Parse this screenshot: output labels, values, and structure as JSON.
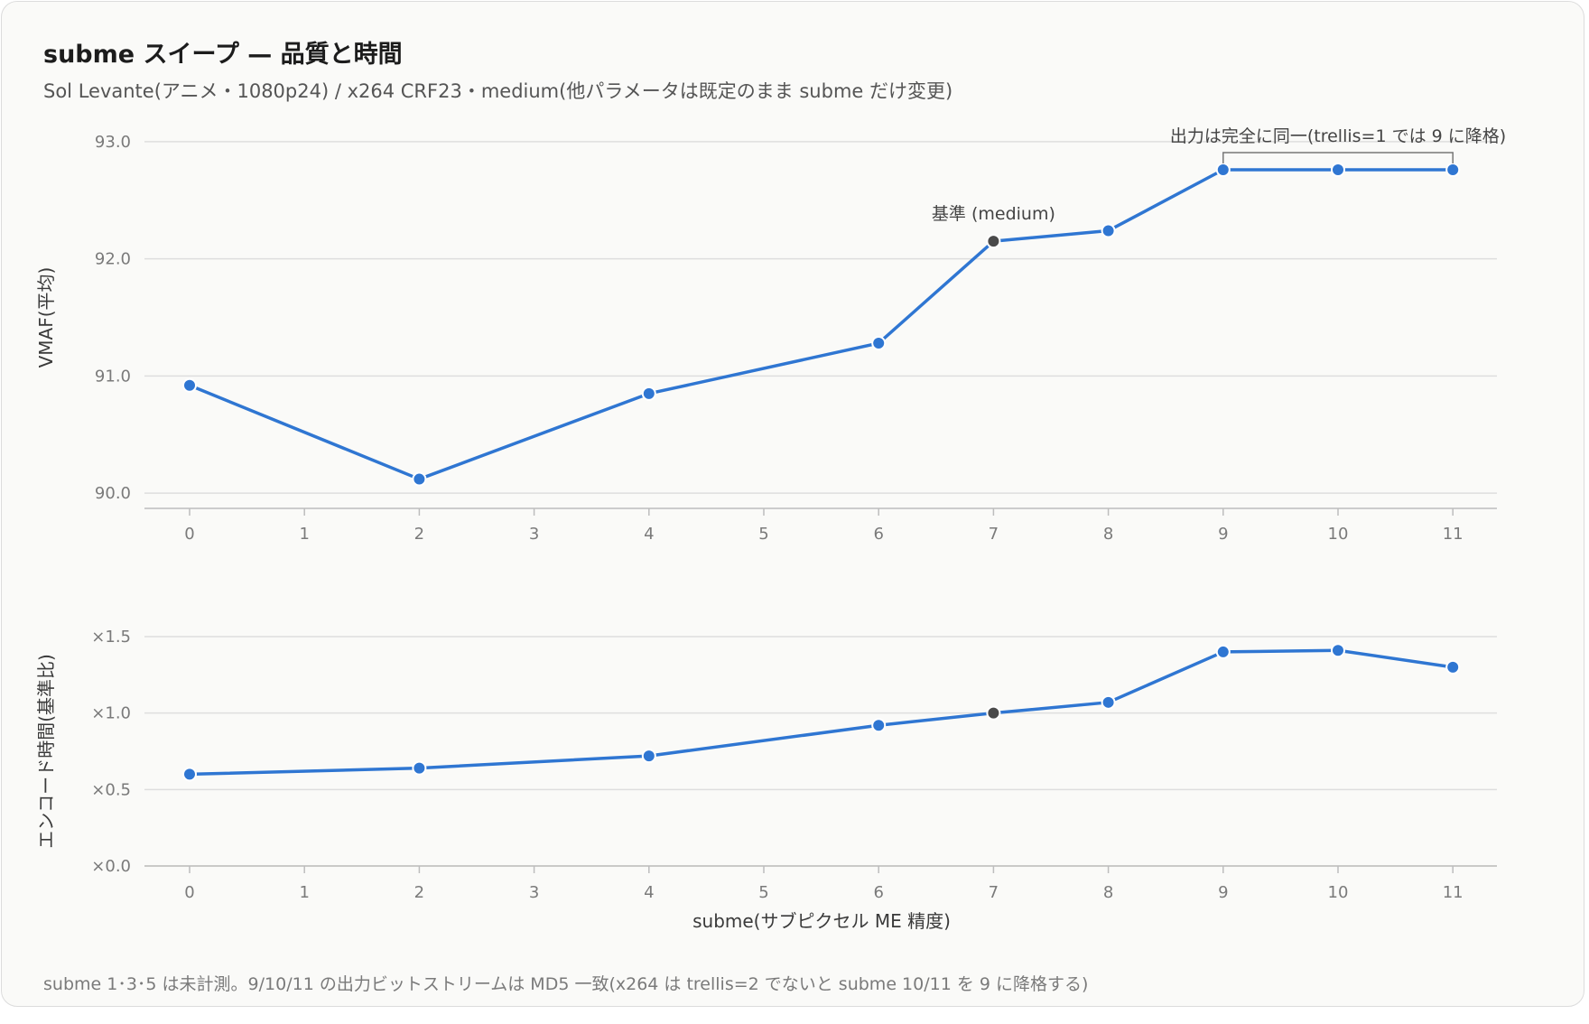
{
  "title": "subme スイープ — 品質と時間",
  "subtitle": "Sol Levante(アニメ・1080p24) / x264 CRF23・medium(他パラメータは既定のまま subme だけ変更)",
  "footnote": "subme 1･3･5 は未計測。9/10/11 の出力ビットストリームは MD5 一致(x264 は trellis=2 でないと subme 10/11 を 9 に降格する)",
  "colors": {
    "series": "#2f76d2",
    "baseline": "#4a4a4a",
    "grid": "#dedede",
    "axis": "#bdbdbd"
  },
  "chart_data": [
    {
      "type": "line",
      "ylabel": "VMAF(平均)",
      "xlabel": "",
      "x_ticks": [
        0,
        1,
        2,
        3,
        4,
        5,
        6,
        7,
        8,
        9,
        10,
        11
      ],
      "y_ticks": [
        "90.0",
        "91.0",
        "92.0",
        "93.0"
      ],
      "ylim": [
        89.87,
        93.13
      ],
      "grid": true,
      "x": [
        0,
        2,
        4,
        6,
        7,
        8,
        9,
        10,
        11
      ],
      "values": [
        90.92,
        90.12,
        90.85,
        91.28,
        92.15,
        92.24,
        92.76,
        92.76,
        92.76
      ],
      "baseline_x": 7,
      "annotations": {
        "baseline": "基準 (medium)",
        "bracket": "出力は完全に同一(trellis=1 では 9 に降格)",
        "bracket_from": 9,
        "bracket_to": 11
      }
    },
    {
      "type": "line",
      "ylabel": "エンコード時間(基準比)",
      "xlabel": "subme(サブピクセル ME 精度)",
      "x_ticks": [
        0,
        1,
        2,
        3,
        4,
        5,
        6,
        7,
        8,
        9,
        10,
        11
      ],
      "y_ticks": [
        {
          "v": 0.0,
          "label": "×0.0"
        },
        {
          "v": 0.5,
          "label": "×0.5"
        },
        {
          "v": 1.0,
          "label": "×1.0"
        },
        {
          "v": 1.5,
          "label": "×1.5"
        }
      ],
      "ylim": [
        0,
        1.5
      ],
      "grid": true,
      "x": [
        0,
        2,
        4,
        6,
        7,
        8,
        9,
        10,
        11
      ],
      "values": [
        0.6,
        0.64,
        0.72,
        0.92,
        1.0,
        1.07,
        1.4,
        1.41,
        1.3
      ],
      "baseline_x": 7
    }
  ]
}
